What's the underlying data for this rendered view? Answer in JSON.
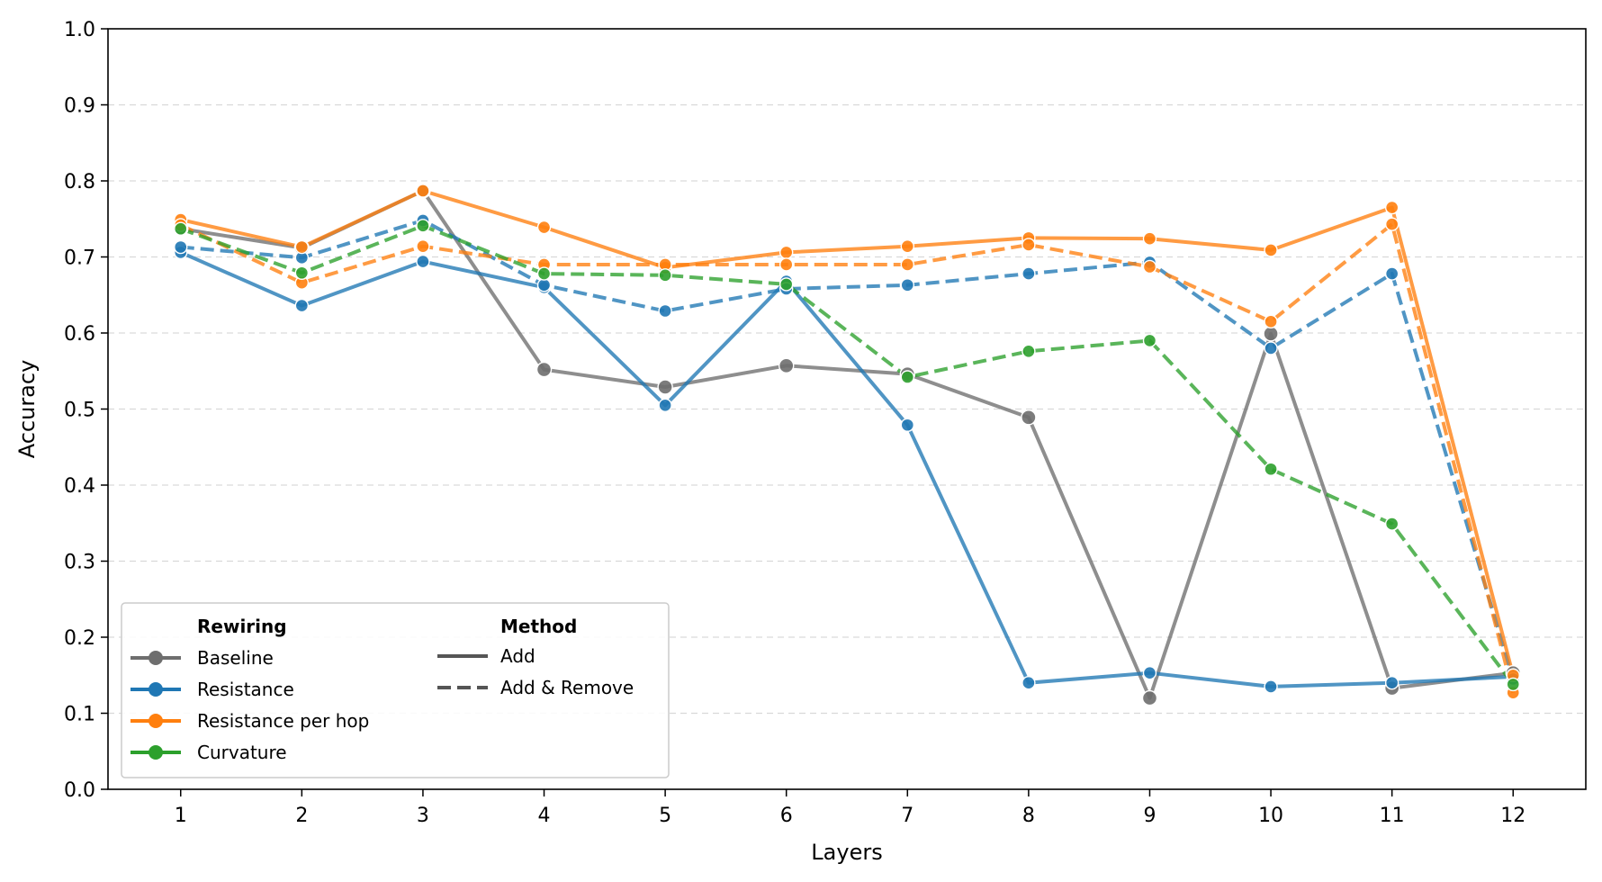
{
  "chart_data": {
    "type": "line",
    "xlabel": "Layers",
    "ylabel": "Accuracy",
    "ylim": [
      0.0,
      1.0
    ],
    "xlim": [
      0.4,
      12.6
    ],
    "x": [
      1,
      2,
      3,
      4,
      5,
      6,
      7,
      8,
      9,
      10,
      11,
      12
    ],
    "xticks": [
      "1",
      "2",
      "3",
      "4",
      "5",
      "6",
      "7",
      "8",
      "9",
      "10",
      "11",
      "12"
    ],
    "yticks": [
      "0.0",
      "0.1",
      "0.2",
      "0.3",
      "0.4",
      "0.5",
      "0.6",
      "0.7",
      "0.8",
      "0.9",
      "1.0"
    ],
    "grid": "horizontal dashed",
    "legend": {
      "placement": "lower-left",
      "rewiring_title": "Rewiring",
      "method_title": "Method",
      "rewiring": [
        {
          "label": "Baseline",
          "color": "#6e6e6e"
        },
        {
          "label": "Resistance",
          "color": "#1f77b4"
        },
        {
          "label": "Resistance per hop",
          "color": "#ff7f0e"
        },
        {
          "label": "Curvature",
          "color": "#2ca02c"
        }
      ],
      "method": [
        {
          "label": "Add",
          "dash": "solid"
        },
        {
          "label": "Add & Remove",
          "dash": "dashed"
        }
      ]
    },
    "series": [
      {
        "rewiring": "Baseline",
        "method": "Add",
        "color": "#6e6e6e",
        "values": [
          0.737,
          0.712,
          0.787,
          0.552,
          0.529,
          0.557,
          0.546,
          0.489,
          0.12,
          0.599,
          0.133,
          0.153
        ]
      },
      {
        "rewiring": "Resistance",
        "method": "Add",
        "color": "#1f77b4",
        "values": [
          0.706,
          0.636,
          0.694,
          0.66,
          0.505,
          0.668,
          0.479,
          0.14,
          0.153,
          0.135,
          0.14,
          0.148
        ]
      },
      {
        "rewiring": "Resistance",
        "method": "Add & Remove",
        "color": "#1f77b4",
        "values": [
          0.713,
          0.699,
          0.748,
          0.663,
          0.629,
          0.658,
          0.663,
          0.678,
          0.693,
          0.58,
          0.678,
          0.145
        ]
      },
      {
        "rewiring": "Resistance per hop",
        "method": "Add",
        "color": "#ff7f0e",
        "values": [
          0.749,
          0.713,
          0.787,
          0.739,
          0.686,
          0.706,
          0.714,
          0.725,
          0.724,
          0.709,
          0.765,
          0.15
        ]
      },
      {
        "rewiring": "Resistance per hop",
        "method": "Add & Remove",
        "color": "#ff7f0e",
        "values": [
          0.742,
          0.666,
          0.714,
          0.69,
          0.69,
          0.69,
          0.69,
          0.716,
          0.687,
          0.615,
          0.743,
          0.127
        ]
      },
      {
        "rewiring": "Curvature",
        "method": "Add & Remove",
        "color": "#2ca02c",
        "values": [
          0.737,
          0.679,
          0.741,
          0.678,
          0.676,
          0.664,
          0.542,
          0.576,
          0.59,
          0.421,
          0.349,
          0.138
        ]
      }
    ]
  }
}
